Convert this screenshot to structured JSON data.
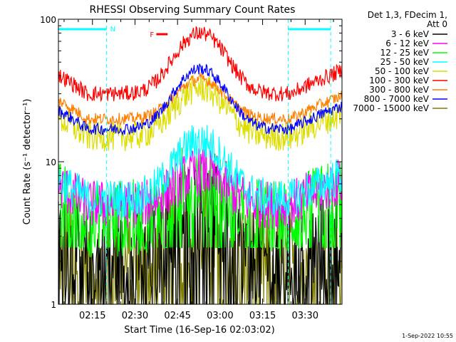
{
  "chart_data": {
    "type": "line",
    "title": "RHESSI Observing Summary Count Rates",
    "xlabel": "Start Time (16-Sep-16 02:03:02)",
    "ylabel": "Count Rate (s⁻¹ detector⁻¹)",
    "yscale": "log",
    "ylim": [
      1,
      100
    ],
    "xlim_minutes": [
      0,
      100
    ],
    "x_tick_labels": [
      "02:15",
      "02:30",
      "02:45",
      "03:00",
      "03:15",
      "03:30"
    ],
    "x_tick_minutes": [
      12,
      27,
      42,
      57,
      72,
      87
    ],
    "y_tick_labels": [
      "1",
      "10",
      "100"
    ],
    "legend_header": [
      "Det 1,3, FDecim 1,",
      "Att 0"
    ],
    "legend_position": "right",
    "series": [
      {
        "name": "3 - 6 keV",
        "color": "#000000",
        "base": 2.0,
        "peak": 5.0,
        "noise": 0.5,
        "low": 1.0
      },
      {
        "name": "6 - 12 keV",
        "color": "#ff00ff",
        "base": 5.0,
        "peak": 8.5,
        "noise": 0.25,
        "low": 3.5
      },
      {
        "name": "12 - 25 keV",
        "color": "#00ff00",
        "base": 4.0,
        "peak": 8.0,
        "noise": 0.4,
        "low": 2.5
      },
      {
        "name": "25 - 50 keV",
        "color": "#00ffff",
        "base": 5.5,
        "peak": 14.0,
        "noise": 0.2,
        "low": 4.5
      },
      {
        "name": "50 - 100 keV",
        "color": "#dddd00",
        "base": 15.0,
        "peak": 33.0,
        "noise": 0.15,
        "low": 12.0
      },
      {
        "name": "100 - 300 keV",
        "color": "#ff0000",
        "base": 30.0,
        "peak": 80.0,
        "noise": 0.08,
        "low": 25.0
      },
      {
        "name": "300 - 800 keV",
        "color": "#ff8000",
        "base": 20.0,
        "peak": 38.0,
        "noise": 0.06,
        "low": 17.0
      },
      {
        "name": "800 - 7000 keV",
        "color": "#0000ff",
        "base": 17.0,
        "peak": 45.0,
        "noise": 0.06,
        "low": 15.0
      },
      {
        "name": "7000 - 15000 keV",
        "color": "#808000",
        "base": 1.8,
        "peak": 3.5,
        "noise": 0.6,
        "low": 1.0
      }
    ],
    "annotations": [
      {
        "text": "N",
        "color": "#00ffff",
        "start_min": 0,
        "end_min": 17,
        "kind": "night"
      },
      {
        "text": "",
        "color": "#00ffff",
        "start_min": 81,
        "end_min": 96,
        "kind": "night"
      },
      {
        "text": "F",
        "color": "#ff0000",
        "start_min": 33,
        "end_min": 37,
        "kind": "flare"
      }
    ],
    "grid": false
  },
  "footer": {
    "timestamp": "1-Sep-2022 10:55"
  }
}
